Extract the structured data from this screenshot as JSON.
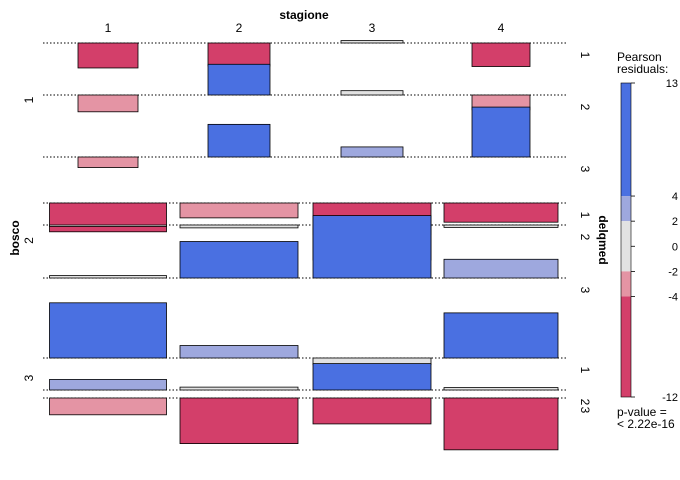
{
  "chart_data": {
    "type": "association",
    "title": "",
    "top_variable": "stagione",
    "left_variable": "bosco",
    "right_variable": "delqmed",
    "columns": [
      "1",
      "2",
      "3",
      "4"
    ],
    "rows": [
      "1",
      "2",
      "3"
    ],
    "sub_rows": [
      "1",
      "2",
      "3"
    ],
    "residuals": [
      [
        [
          -5.2,
          -4.8,
          0.5,
          -4.9
        ],
        [
          -3.5,
          6.4,
          0.9,
          -3.1
        ],
        [
          -2.2,
          6.8,
          2.1,
          10.4
        ]
      ],
      [
        [
          -6.0,
          -3.1,
          -6.6,
          -4.0
        ],
        [
          -0.3,
          -0.6,
          -7.3,
          -0.5
        ],
        [
          0.5,
          7.6,
          13.0,
          3.9
        ]
      ],
      [
        [
          11.5,
          2.6,
          -1.4,
          9.4
        ],
        [
          2.2,
          0.6,
          5.5,
          0.5
        ],
        [
          -3.5,
          -9.5,
          -5.4,
          -10.8
        ]
      ]
    ],
    "legend": {
      "title_lines": [
        "Pearson",
        "residuals:"
      ],
      "ticks": [
        "13",
        "4",
        "2",
        "0",
        "-2",
        "-4",
        "-12"
      ],
      "min": -12,
      "max": 13,
      "colors": {
        "pos_strong": "#4A70E1",
        "pos_mid": "#9EA8DE",
        "neutral": "#E2E2E2",
        "neg_mid": "#E494A4",
        "neg_strong": "#D33F6A"
      },
      "p_value_lines": [
        "p-value =",
        "< 2.22e-16"
      ]
    }
  }
}
